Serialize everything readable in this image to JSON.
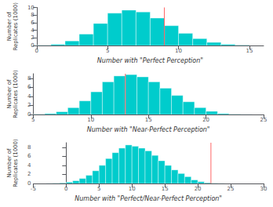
{
  "chart_data": [
    {
      "type": "histogram",
      "xlabel": "Number with \"Perfect Perception\"",
      "ylabel": "Number of\nReplicates (1000)",
      "bins": [
        0,
        1,
        2,
        3,
        4,
        5,
        6,
        7,
        8,
        9,
        10,
        11,
        12,
        13,
        14,
        15
      ],
      "values": [
        0.05,
        0.3,
        1.2,
        3.0,
        5.8,
        8.5,
        9.3,
        8.8,
        7.2,
        5.2,
        3.2,
        1.8,
        0.8,
        0.3,
        0.08
      ],
      "color": "#00CCCC",
      "vline": {
        "x": 9.0,
        "color": "#FF6666"
      },
      "xlim": [
        0,
        16
      ],
      "xticks": [
        0,
        5,
        10,
        15
      ],
      "ylim": [
        0,
        10
      ],
      "yticks": [
        0,
        2,
        4,
        6,
        8,
        10
      ],
      "grid": false
    },
    {
      "type": "histogram",
      "xlabel": "Number with \"Near-Perfect Perception\"",
      "ylabel": "Number of\nReplicates (1000)",
      "bins": [
        5,
        6,
        7,
        8,
        9,
        10,
        11,
        12,
        13,
        14,
        15,
        16,
        17,
        18,
        19,
        20,
        21,
        22,
        23,
        24,
        25
      ],
      "values": [
        0.05,
        0.2,
        0.6,
        1.5,
        3.0,
        5.0,
        7.2,
        8.5,
        8.8,
        8.3,
        7.2,
        5.8,
        4.2,
        2.8,
        1.5,
        0.7,
        0.2,
        0.06,
        0.02,
        0.005
      ],
      "color": "#00CCCC",
      "vline": {
        "x": 13.0,
        "color": "#FF6666"
      },
      "xlim": [
        5,
        25
      ],
      "xticks": [
        5,
        10,
        15,
        20,
        25
      ],
      "ylim": [
        0,
        9
      ],
      "yticks": [
        0,
        2,
        4,
        6,
        8
      ],
      "grid": false
    },
    {
      "type": "histogram",
      "xlabel": "Number with \"Perfect/Near-Perfect Perception\"",
      "ylabel": "Number of\nReplicates (1000)",
      "bins": [
        -4,
        -3,
        -2,
        -1,
        0,
        1,
        2,
        3,
        4,
        5,
        6,
        7,
        8,
        9,
        10,
        11,
        12,
        13,
        14,
        15,
        16,
        17,
        18,
        19,
        20,
        21,
        22,
        23,
        24,
        25,
        26,
        27,
        28
      ],
      "values": [
        0.005,
        0.02,
        0.05,
        0.12,
        0.3,
        0.6,
        1.1,
        1.8,
        2.8,
        4.0,
        5.5,
        6.8,
        7.8,
        8.5,
        8.2,
        7.8,
        7.2,
        6.2,
        5.0,
        4.0,
        3.0,
        2.2,
        1.5,
        0.8,
        0.4,
        0.15,
        0.05,
        0.02,
        0.005,
        0.001,
        0.0,
        0.0
      ],
      "color": "#00CCCC",
      "vline": {
        "x": 22.0,
        "color": "#FF6666"
      },
      "xlim": [
        -5,
        30
      ],
      "xticks": [
        -5,
        0,
        5,
        10,
        15,
        20,
        25,
        30
      ],
      "ylim": [
        0,
        9
      ],
      "yticks": [
        0,
        2,
        4,
        6,
        8
      ],
      "grid": false
    }
  ]
}
